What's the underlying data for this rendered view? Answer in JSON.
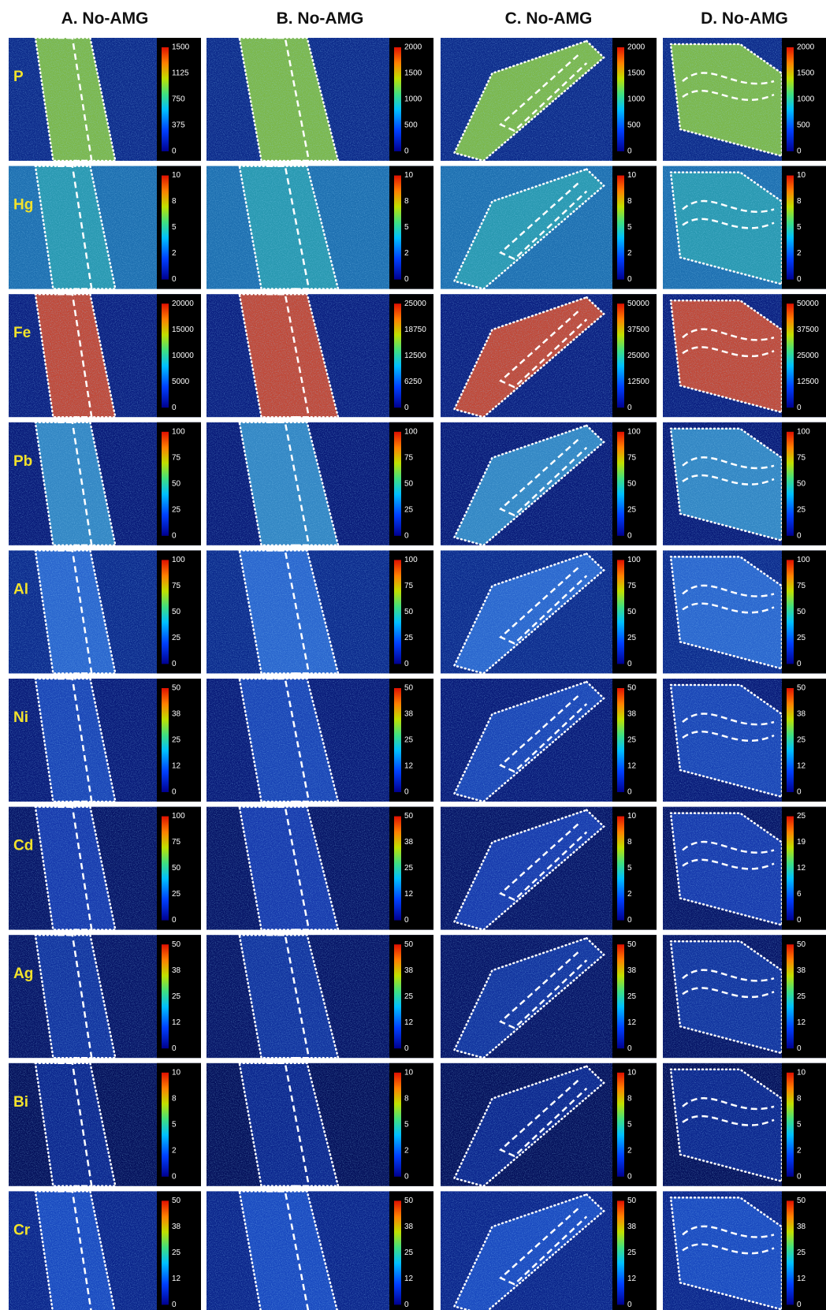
{
  "columns": [
    "A. No-AMG",
    "B. No-AMG",
    "C. No-AMG",
    "D. No-AMG"
  ],
  "rows": [
    {
      "element": "P",
      "scales": [
        [
          1500,
          1125,
          750,
          375,
          0
        ],
        [
          2000,
          1500,
          1000,
          500,
          0
        ],
        [
          2000,
          1500,
          1000,
          500,
          0
        ],
        [
          2000,
          1500,
          1000,
          500,
          0
        ]
      ]
    },
    {
      "element": "Hg",
      "scales": [
        [
          10,
          8,
          5,
          2,
          0
        ],
        [
          10,
          8,
          5,
          2,
          0
        ],
        [
          10,
          8,
          5,
          2,
          0
        ],
        [
          10,
          8,
          5,
          2,
          0
        ]
      ]
    },
    {
      "element": "Fe",
      "scales": [
        [
          20000,
          15000,
          10000,
          5000,
          0
        ],
        [
          25000,
          18750,
          12500,
          6250,
          0
        ],
        [
          50000,
          37500,
          25000,
          12500,
          0
        ],
        [
          50000,
          37500,
          25000,
          12500,
          0
        ]
      ]
    },
    {
      "element": "Pb",
      "scales": [
        [
          100,
          75,
          50,
          25,
          0
        ],
        [
          100,
          75,
          50,
          25,
          0
        ],
        [
          100,
          75,
          50,
          25,
          0
        ],
        [
          100,
          75,
          50,
          25,
          0
        ]
      ]
    },
    {
      "element": "Al",
      "scales": [
        [
          100,
          75,
          50,
          25,
          0
        ],
        [
          100,
          75,
          50,
          25,
          0
        ],
        [
          100,
          75,
          50,
          25,
          0
        ],
        [
          100,
          75,
          50,
          25,
          0
        ]
      ]
    },
    {
      "element": "Ni",
      "scales": [
        [
          50,
          38,
          25,
          12,
          0
        ],
        [
          50,
          38,
          25,
          12,
          0
        ],
        [
          50,
          38,
          25,
          12,
          0
        ],
        [
          50,
          38,
          25,
          12,
          0
        ]
      ]
    },
    {
      "element": "Cd",
      "scales": [
        [
          100,
          75,
          50,
          25,
          0
        ],
        [
          50,
          38,
          25,
          12,
          0
        ],
        [
          10,
          8,
          5,
          2,
          0
        ],
        [
          25,
          19,
          12,
          6,
          0
        ]
      ]
    },
    {
      "element": "Ag",
      "scales": [
        [
          50,
          38,
          25,
          12,
          0
        ],
        [
          50,
          38,
          25,
          12,
          0
        ],
        [
          50,
          38,
          25,
          12,
          0
        ],
        [
          50,
          38,
          25,
          12,
          0
        ]
      ]
    },
    {
      "element": "Bi",
      "scales": [
        [
          10,
          8,
          5,
          2,
          0
        ],
        [
          10,
          8,
          5,
          2,
          0
        ],
        [
          10,
          8,
          5,
          2,
          0
        ],
        [
          10,
          8,
          5,
          2,
          0
        ]
      ]
    },
    {
      "element": "Cr",
      "scales": [
        [
          50,
          38,
          25,
          12,
          0
        ],
        [
          50,
          38,
          25,
          12,
          0
        ],
        [
          50,
          38,
          25,
          12,
          0
        ],
        [
          50,
          38,
          25,
          12,
          0
        ]
      ]
    }
  ]
}
